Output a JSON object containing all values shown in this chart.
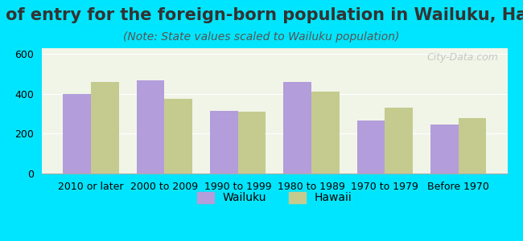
{
  "title": "Year of entry for the foreign-born population in Wailuku, Hawaii",
  "subtitle": "(Note: State values scaled to Wailuku population)",
  "categories": [
    "2010 or later",
    "2000 to 2009",
    "1990 to 1999",
    "1980 to 1989",
    "1970 to 1979",
    "Before 1970"
  ],
  "wailuku_values": [
    400,
    470,
    315,
    460,
    265,
    248
  ],
  "hawaii_values": [
    462,
    375,
    312,
    410,
    330,
    277
  ],
  "wailuku_color": "#b39ddb",
  "hawaii_color": "#c5ca8e",
  "background_color": "#00e5ff",
  "plot_bg_color": "#f0f5e8",
  "bar_width": 0.38,
  "ylim": [
    0,
    630
  ],
  "yticks": [
    0,
    200,
    400,
    600
  ],
  "title_fontsize": 15,
  "subtitle_fontsize": 10,
  "tick_fontsize": 9,
  "legend_fontsize": 10,
  "watermark": "City-Data.com"
}
